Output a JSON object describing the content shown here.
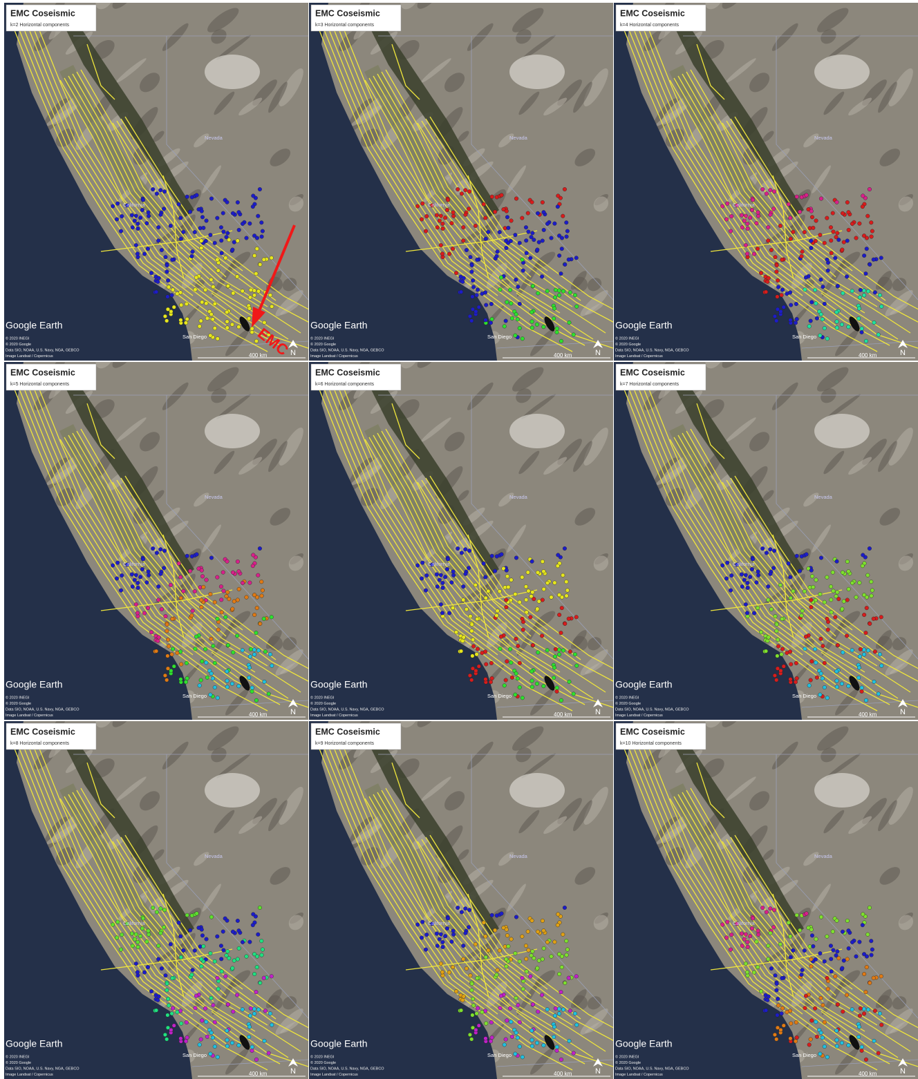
{
  "annotation": "EMC",
  "panels": [
    {
      "title": "EMC Coseismic",
      "subtitle": "k=2 Horizontal components",
      "nevada": "Nevada",
      "california": "California",
      "city": "San Diego",
      "logo": "Google Earth",
      "attribution": [
        "© 2020 INEGI",
        "© 2020 Google",
        "Data SIO, NOAA, U.S. Navy, NGA, GEBCO",
        "Image Landsat / Copernicus"
      ],
      "scale": "400 km",
      "north": "N",
      "cluster_colors": [
        "#1c1cc8",
        "#e6e61e"
      ]
    },
    {
      "title": "EMC Coseismic",
      "subtitle": "k=3 Horizontal components",
      "nevada": "Nevada",
      "california": "California",
      "city": "San Diego",
      "logo": "Google Earth",
      "attribution": [
        "© 2020 INEGI",
        "© 2020 Google",
        "Data SIO, NOAA, U.S. Navy, NGA, GEBCO",
        "Image Landsat / Copernicus"
      ],
      "scale": "400 km",
      "north": "N",
      "cluster_colors": [
        "#d81c1c",
        "#1c1cc8",
        "#2ee02e"
      ]
    },
    {
      "title": "EMC Coseismic",
      "subtitle": "k=4 Horizontal components",
      "nevada": "Nevada",
      "california": "California",
      "city": "San Diego",
      "logo": "Google Earth",
      "attribution": [
        "© 2020 INEGI",
        "© 2020 Google",
        "Data SIO, NOAA, U.S. Navy, NGA, GEBCO",
        "Image Landsat / Copernicus"
      ],
      "scale": "400 km",
      "north": "N",
      "cluster_colors": [
        "#d8208a",
        "#d81c1c",
        "#1c1cc8",
        "#20e0a0"
      ]
    },
    {
      "title": "EMC Coseismic",
      "subtitle": "k=5 Horizontal components",
      "nevada": "Nevada",
      "california": "California",
      "city": "San Diego",
      "logo": "Google Earth",
      "attribution": [
        "© 2020 INEGI",
        "© 2020 Google",
        "Data SIO, NOAA, U.S. Navy, NGA, GEBCO",
        "Image Landsat / Copernicus"
      ],
      "scale": "400 km",
      "north": "N",
      "cluster_colors": [
        "#1c1cc8",
        "#d8208a",
        "#e07a14",
        "#2ee02e",
        "#20c0e0"
      ]
    },
    {
      "title": "EMC Coseismic",
      "subtitle": "k=6 Horizontal components",
      "nevada": "Nevada",
      "california": "California",
      "city": "San Diego",
      "logo": "Google Earth",
      "attribution": [
        "© 2020 INEGI",
        "© 2020 Google",
        "Data SIO, NOAA, U.S. Navy, NGA, GEBCO",
        "Image Landsat / Copernicus"
      ],
      "scale": "400 km",
      "north": "N",
      "cluster_colors": [
        "#1c1cc8",
        "#e6e61e",
        "#d81c1c",
        "#2ee02e"
      ]
    },
    {
      "title": "EMC Coseismic",
      "subtitle": "k=7 Horizontal components",
      "nevada": "Nevada",
      "california": "California",
      "city": "San Diego",
      "logo": "Google Earth",
      "attribution": [
        "© 2020 INEGI",
        "© 2020 Google",
        "Data SIO, NOAA, U.S. Navy, NGA, GEBCO",
        "Image Landsat / Copernicus"
      ],
      "scale": "400 km",
      "north": "N",
      "cluster_colors": [
        "#1c1cc8",
        "#7ee02e",
        "#d81c1c",
        "#20c0e0"
      ]
    },
    {
      "title": "EMC Coseismic",
      "subtitle": "k=8 Horizontal components",
      "nevada": "Nevada",
      "california": "California",
      "city": "San Diego",
      "logo": "Google Earth",
      "attribution": [
        "© 2020 INEGI",
        "© 2020 Google",
        "Data SIO, NOAA, U.S. Navy, NGA, GEBCO",
        "Image Landsat / Copernicus"
      ],
      "scale": "400 km",
      "north": "N",
      "cluster_colors": [
        "#5ee02e",
        "#1c1cc8",
        "#20e080",
        "#c020c8",
        "#20c0e0"
      ]
    },
    {
      "title": "EMC Coseismic",
      "subtitle": "k=9 Horizontal components",
      "nevada": "Nevada",
      "california": "California",
      "city": "San Diego",
      "logo": "Google Earth",
      "attribution": [
        "© 2020 INEGI",
        "© 2020 Google",
        "Data SIO, NOAA, U.S. Navy, NGA, GEBCO",
        "Image Landsat / Copernicus"
      ],
      "scale": "400 km",
      "north": "N",
      "cluster_colors": [
        "#1c1cc8",
        "#e0a014",
        "#7ee02e",
        "#c020c8",
        "#20c0e0"
      ]
    },
    {
      "title": "EMC Coseismic",
      "subtitle": "k=10 Horizontal components",
      "nevada": "Nevada",
      "california": "California",
      "city": "San Diego",
      "logo": "Google Earth",
      "attribution": [
        "© 2020 INEGI",
        "© 2020 Google",
        "Data SIO, NOAA, U.S. Navy, NGA, GEBCO",
        "Image Landsat / Copernicus"
      ],
      "scale": "400 km",
      "north": "N",
      "cluster_colors": [
        "#d8208a",
        "#7ee02e",
        "#1c1cc8",
        "#e07a14",
        "#d81c1c",
        "#20c0e0"
      ]
    }
  ]
}
